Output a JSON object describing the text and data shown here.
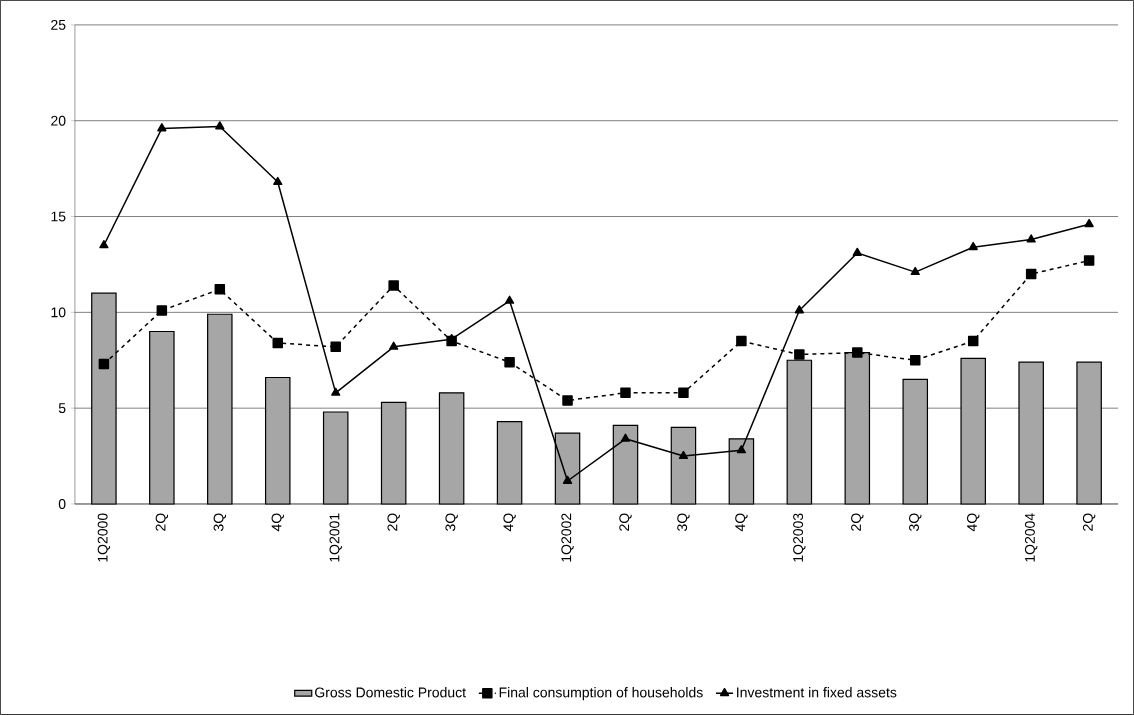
{
  "chart_data": {
    "type": "bar",
    "categories": [
      "1Q2000",
      "2Q",
      "3Q",
      "4Q",
      "1Q2001",
      "2Q",
      "3Q",
      "4Q",
      "1Q2002",
      "2Q",
      "3Q",
      "4Q",
      "1Q2003",
      "2Q",
      "3Q",
      "4Q",
      "1Q2004",
      "2Q"
    ],
    "series": [
      {
        "name": "Gross Domestic Product",
        "color": "#a6a6a6",
        "values": [
          11.0,
          9.0,
          9.9,
          6.6,
          4.8,
          5.3,
          5.8,
          4.3,
          3.7,
          4.1,
          4.0,
          3.4,
          7.5,
          7.9,
          6.5,
          7.6,
          7.4,
          7.4
        ]
      },
      {
        "name": "Final consumption of households",
        "type": "line",
        "color": "#000000",
        "marker": "square",
        "line_style": "dashed",
        "values": [
          7.3,
          10.1,
          11.2,
          8.4,
          8.2,
          11.4,
          8.5,
          7.4,
          5.4,
          5.8,
          5.8,
          8.5,
          7.8,
          7.9,
          7.5,
          8.5,
          12.0,
          12.7
        ]
      },
      {
        "name": "Investment in fixed assets",
        "type": "line",
        "color": "#000000",
        "marker": "triangle",
        "line_style": "solid",
        "values": [
          13.5,
          19.6,
          19.7,
          16.8,
          5.8,
          8.2,
          8.6,
          10.6,
          1.2,
          3.4,
          2.5,
          2.8,
          10.1,
          13.1,
          12.1,
          13.4,
          13.8,
          14.6
        ]
      }
    ],
    "ylim": [
      0,
      25
    ],
    "yticks": [
      0,
      5,
      10,
      15,
      20,
      25
    ],
    "grid": "y",
    "legend": "bottom"
  }
}
